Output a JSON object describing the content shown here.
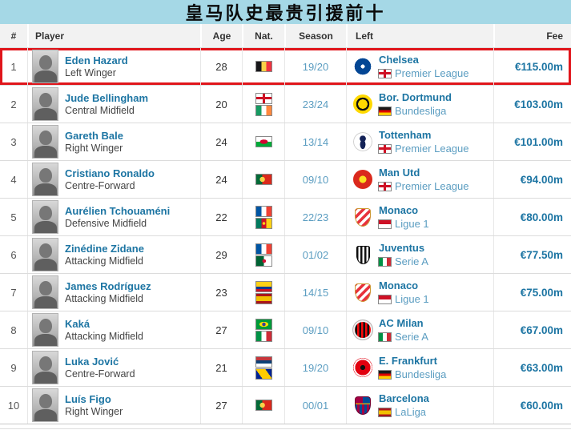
{
  "title": "皇马队史最贵引援前十",
  "colors": {
    "title_background": "#a5d8e6",
    "header_background": "#f2f2f2",
    "link_blue": "#1d75a3",
    "light_link_blue": "#5b9dc1",
    "highlight_border_red": "#e0151b"
  },
  "table": {
    "headers": {
      "rank": "#",
      "player": "Player",
      "age": "Age",
      "nat": "Nat.",
      "season": "Season",
      "left": "Left",
      "fee": "Fee"
    },
    "rows": [
      {
        "rank": "1",
        "player": "Eden Hazard",
        "position": "Left Winger",
        "age": "28",
        "nationalities": [
          "belgium"
        ],
        "season": "19/20",
        "club": "Chelsea",
        "badge": "chelsea",
        "league": "Premier League",
        "league_flag": "england",
        "fee": "€115.00m",
        "highlighted": true
      },
      {
        "rank": "2",
        "player": "Jude Bellingham",
        "position": "Central Midfield",
        "age": "20",
        "nationalities": [
          "england",
          "ireland"
        ],
        "season": "23/24",
        "club": "Bor. Dortmund",
        "badge": "dortmund",
        "league": "Bundesliga",
        "league_flag": "germany",
        "fee": "€103.00m"
      },
      {
        "rank": "3",
        "player": "Gareth Bale",
        "position": "Right Winger",
        "age": "24",
        "nationalities": [
          "wales"
        ],
        "season": "13/14",
        "club": "Tottenham",
        "badge": "tottenham",
        "league": "Premier League",
        "league_flag": "england",
        "fee": "€101.00m"
      },
      {
        "rank": "4",
        "player": "Cristiano Ronaldo",
        "position": "Centre-Forward",
        "age": "24",
        "nationalities": [
          "portugal"
        ],
        "season": "09/10",
        "club": "Man Utd",
        "badge": "manutd",
        "league": "Premier League",
        "league_flag": "england",
        "fee": "€94.00m"
      },
      {
        "rank": "5",
        "player": "Aurélien Tchouaméni",
        "position": "Defensive Midfield",
        "age": "22",
        "nationalities": [
          "france",
          "cameroon"
        ],
        "season": "22/23",
        "club": "Monaco",
        "badge": "monaco",
        "league": "Ligue 1",
        "league_flag": "monaco",
        "fee": "€80.00m"
      },
      {
        "rank": "6",
        "player": "Zinédine Zidane",
        "position": "Attacking Midfield",
        "age": "29",
        "nationalities": [
          "france",
          "algeria"
        ],
        "season": "01/02",
        "club": "Juventus",
        "badge": "juventus",
        "league": "Serie A",
        "league_flag": "italy",
        "fee": "€77.50m"
      },
      {
        "rank": "7",
        "player": "James Rodríguez",
        "position": "Attacking Midfield",
        "age": "23",
        "nationalities": [
          "colombia",
          "spain"
        ],
        "season": "14/15",
        "club": "Monaco",
        "badge": "monaco",
        "league": "Ligue 1",
        "league_flag": "monaco",
        "fee": "€75.00m"
      },
      {
        "rank": "8",
        "player": "Kaká",
        "position": "Attacking Midfield",
        "age": "27",
        "nationalities": [
          "brazil",
          "italy"
        ],
        "season": "09/10",
        "club": "AC Milan",
        "badge": "acmilan",
        "league": "Serie A",
        "league_flag": "italy",
        "fee": "€67.00m"
      },
      {
        "rank": "9",
        "player": "Luka Jović",
        "position": "Centre-Forward",
        "age": "21",
        "nationalities": [
          "serbia",
          "bosnia"
        ],
        "season": "19/20",
        "club": "E. Frankfurt",
        "badge": "frankfurt",
        "league": "Bundesliga",
        "league_flag": "germany",
        "fee": "€63.00m"
      },
      {
        "rank": "10",
        "player": "Luís Figo",
        "position": "Right Winger",
        "age": "27",
        "nationalities": [
          "portugal"
        ],
        "season": "00/01",
        "club": "Barcelona",
        "badge": "barcelona",
        "league": "LaLiga",
        "league_flag": "spain",
        "fee": "€60.00m"
      }
    ]
  }
}
